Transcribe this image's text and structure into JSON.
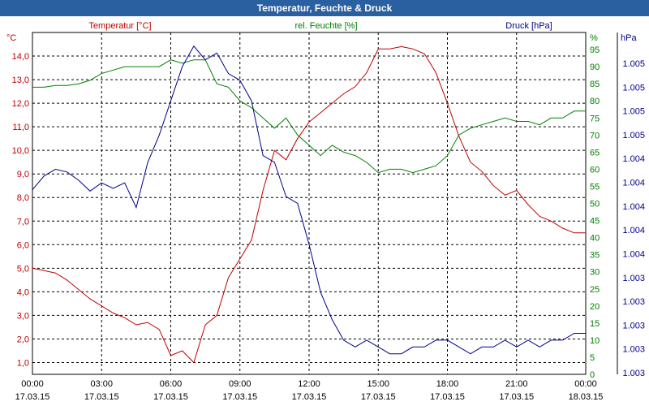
{
  "window": {
    "title": "Temperatur, Feuchte & Druck"
  },
  "chart_data": {
    "type": "line",
    "title": "Temperatur, Feuchte & Druck",
    "x_tick_labels": [
      [
        "00:00",
        "17.03.15"
      ],
      [
        "03:00",
        "17.03.15"
      ],
      [
        "06:00",
        "17.03.15"
      ],
      [
        "09:00",
        "17.03.15"
      ],
      [
        "12:00",
        "17.03.15"
      ],
      [
        "15:00",
        "17.03.15"
      ],
      [
        "18:00",
        "17.03.15"
      ],
      [
        "21:00",
        "17.03.15"
      ],
      [
        "00:00",
        "18.03.15"
      ]
    ],
    "xlim": [
      0,
      24
    ],
    "axes": {
      "temperature": {
        "label": "Temperatur [°C]",
        "unit": "°C",
        "ylim": [
          0.5,
          15.0
        ],
        "ticks": [
          "1,0",
          "2,0",
          "3,0",
          "4,0",
          "5,0",
          "6,0",
          "7,0",
          "8,0",
          "9,0",
          "10,0",
          "11,0",
          "12,0",
          "13,0",
          "14,0"
        ],
        "color": "#c00000"
      },
      "humidity": {
        "label": "rel. Feuchte [%]",
        "unit": "%",
        "ylim": [
          0,
          100
        ],
        "ticks": [
          "0",
          "5",
          "10",
          "15",
          "20",
          "25",
          "30",
          "35",
          "40",
          "45",
          "50",
          "55",
          "60",
          "65",
          "70",
          "75",
          "80",
          "85",
          "90",
          "95"
        ],
        "color": "#008000"
      },
      "pressure": {
        "label": "Druck [hPa]",
        "unit": "hPa",
        "ylim": [
          1002.8,
          1005.3
        ],
        "ticks": [
          "1.003",
          "1.003",
          "1.003",
          "1.003",
          "1.003",
          "1.004",
          "1.004",
          "1.004",
          "1.004",
          "1.004",
          "1.005",
          "1.005",
          "1.005",
          "1.005"
        ],
        "color": "#00008b"
      }
    },
    "grid": true,
    "series": [
      {
        "name": "Temperatur [°C]",
        "axis": "temperature",
        "color": "#c00000",
        "x": [
          0,
          0.5,
          1,
          1.5,
          2,
          2.5,
          3,
          3.5,
          4,
          4.5,
          5,
          5.5,
          6,
          6.5,
          7,
          7.5,
          8,
          8.5,
          9,
          9.5,
          10,
          10.5,
          11,
          11.5,
          12,
          12.5,
          13,
          13.5,
          14,
          14.5,
          15,
          15.5,
          16,
          16.5,
          17,
          17.5,
          18,
          18.5,
          19,
          19.5,
          20,
          20.5,
          21,
          21.5,
          22,
          22.5,
          23,
          23.5,
          24
        ],
        "y": [
          5.0,
          4.9,
          4.8,
          4.5,
          4.1,
          3.7,
          3.4,
          3.1,
          2.9,
          2.6,
          2.7,
          2.4,
          1.3,
          1.5,
          1.0,
          2.6,
          3.0,
          4.6,
          5.4,
          6.2,
          8.3,
          10.0,
          9.6,
          10.5,
          11.2,
          11.6,
          12.0,
          12.4,
          12.7,
          13.3,
          14.3,
          14.3,
          14.4,
          14.3,
          14.1,
          13.3,
          12.0,
          10.6,
          9.5,
          9.1,
          8.5,
          8.1,
          8.3,
          7.7,
          7.2,
          7.0,
          6.7,
          6.5,
          6.5
        ]
      },
      {
        "name": "rel. Feuchte [%]",
        "axis": "humidity",
        "color": "#008000",
        "x": [
          0,
          0.5,
          1,
          1.5,
          2,
          2.5,
          3,
          3.5,
          4,
          4.5,
          5,
          5.5,
          6,
          6.5,
          7,
          7.5,
          8,
          8.5,
          9,
          9.5,
          10,
          10.5,
          11,
          11.5,
          12,
          12.5,
          13,
          13.5,
          14,
          14.5,
          15,
          15.5,
          16,
          16.5,
          17,
          17.5,
          18,
          18.5,
          19,
          19.5,
          20,
          20.5,
          21,
          21.5,
          22,
          22.5,
          23,
          23.5,
          24
        ],
        "y": [
          84,
          84,
          84.5,
          84.5,
          85,
          86,
          88,
          89,
          90,
          90,
          90,
          90,
          92,
          91,
          92,
          92,
          85,
          84,
          80,
          78,
          75,
          72,
          75,
          70,
          67,
          64,
          67,
          65,
          64,
          62,
          59,
          60,
          60,
          59,
          60,
          61,
          64,
          70,
          72,
          73,
          74,
          75,
          74,
          74,
          73,
          75,
          75,
          77,
          77
        ]
      },
      {
        "name": "Druck [hPa]",
        "axis": "pressure",
        "color": "#00008b",
        "x": [
          0,
          0.5,
          1,
          1.5,
          2,
          2.5,
          3,
          3.5,
          4,
          4.5,
          5,
          5.5,
          6,
          6.5,
          7,
          7.5,
          8,
          8.5,
          9,
          9.5,
          10,
          10.5,
          11,
          11.5,
          12,
          12.5,
          13,
          13.5,
          14,
          14.5,
          15,
          15.5,
          16,
          16.5,
          17,
          17.5,
          18,
          18.5,
          19,
          19.5,
          20,
          20.5,
          21,
          21.5,
          22,
          22.5,
          23,
          23.5,
          24
        ],
        "y": [
          1004.15,
          1004.25,
          1004.3,
          1004.28,
          1004.22,
          1004.14,
          1004.2,
          1004.16,
          1004.2,
          1004.02,
          1004.35,
          1004.55,
          1004.8,
          1005.05,
          1005.2,
          1005.1,
          1005.15,
          1005.0,
          1004.95,
          1004.8,
          1004.4,
          1004.35,
          1004.1,
          1004.05,
          1003.75,
          1003.4,
          1003.2,
          1003.05,
          1003.0,
          1003.05,
          1003.0,
          1002.95,
          1002.95,
          1003.0,
          1003.0,
          1003.05,
          1003.05,
          1003.0,
          1002.95,
          1003.0,
          1003.0,
          1003.05,
          1003.0,
          1003.05,
          1003.0,
          1003.05,
          1003.05,
          1003.1,
          1003.1
        ]
      }
    ]
  }
}
